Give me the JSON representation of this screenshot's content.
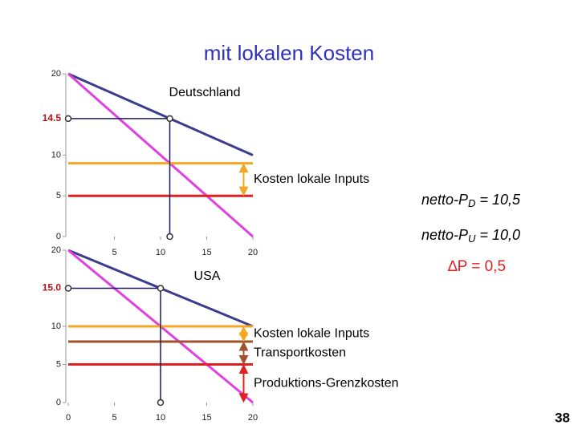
{
  "title": "mit lokalen Kosten",
  "page_number": "38",
  "netto_pd": {
    "prefix": "netto-P",
    "sub": "D",
    "suffix": " = 10,5"
  },
  "netto_pu": {
    "prefix": "netto-P",
    "sub": "U",
    "suffix": " = 10,0"
  },
  "delta_p": "∆P = 0,5",
  "chart_data": [
    {
      "type": "line",
      "label": "Deutschland",
      "xlim": [
        0,
        20
      ],
      "ylim": [
        0,
        20
      ],
      "xticks": [
        5,
        10,
        15,
        20
      ],
      "yticks": [
        0,
        5,
        10,
        20
      ],
      "price_tick": 14.5,
      "series": [
        {
          "color": "#3c3c8c",
          "x": [
            0,
            20
          ],
          "values": [
            20,
            10
          ]
        },
        {
          "color": "#e040e0",
          "x": [
            0,
            20
          ],
          "values": [
            20,
            0
          ]
        },
        {
          "color": "#f5a623",
          "x": [
            0,
            20
          ],
          "values": [
            9,
            9
          ]
        },
        {
          "color": "#e02020",
          "x": [
            0,
            20
          ],
          "values": [
            5,
            5
          ]
        }
      ],
      "points": {
        "x": [
          0,
          11,
          11
        ],
        "y": [
          14.5,
          14.5,
          0
        ]
      },
      "arrows": [
        {
          "x": 19,
          "from": 5,
          "to": 9,
          "color": "#f5a623",
          "label": "Kosten lokale Inputs"
        }
      ]
    },
    {
      "type": "line",
      "label": "USA",
      "xlim": [
        0,
        20
      ],
      "ylim": [
        0,
        20
      ],
      "xticks": [
        0,
        5,
        10,
        15,
        20
      ],
      "yticks": [
        0,
        5,
        10,
        20
      ],
      "price_tick": {
        "value": 15,
        "label": "15.0"
      },
      "series": [
        {
          "color": "#3c3c8c",
          "x": [
            0,
            20
          ],
          "values": [
            20,
            10
          ]
        },
        {
          "color": "#e040e0",
          "x": [
            0,
            20
          ],
          "values": [
            20,
            0
          ]
        },
        {
          "color": "#f5a623",
          "x": [
            0,
            20
          ],
          "values": [
            10,
            10
          ]
        },
        {
          "color": "#a0522d",
          "x": [
            0,
            20
          ],
          "values": [
            8,
            8
          ]
        },
        {
          "color": "#e02020",
          "x": [
            0,
            20
          ],
          "values": [
            5,
            5
          ]
        }
      ],
      "points": {
        "x": [
          0,
          10,
          10
        ],
        "y": [
          15,
          15,
          0
        ]
      },
      "arrows": [
        {
          "x": 19,
          "from": 8,
          "to": 10,
          "color": "#f5a623",
          "label": "Kosten lokale Inputs"
        },
        {
          "x": 19,
          "from": 5,
          "to": 8,
          "color": "#a0522d",
          "label": "Transportkosten"
        },
        {
          "x": 19,
          "from": 0,
          "to": 5,
          "color": "#e02020",
          "label": "Produktions-Grenzkosten"
        }
      ]
    }
  ]
}
